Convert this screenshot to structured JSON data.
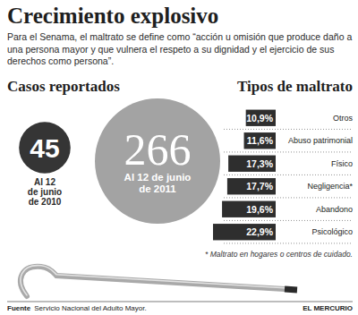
{
  "title": "Crecimiento explosivo",
  "subtitle": "Para el Senama, el maltrato se define como “acción u omisión que produce daño a una persona mayor y que vulnera el respeto a su dignidad y el ejercicio de sus derechos como persona”.",
  "source_label": "Fuente",
  "source": "Servicio Nacional del Adulto Mayor.",
  "publisher": "EL MERCURIO",
  "chart_data": [
    {
      "type": "bubble",
      "title": "Casos reportados",
      "categories": [
        "Al 12 de junio de 2010",
        "Al 12 de junio de 2011"
      ],
      "values": [
        45,
        266
      ],
      "colors": [
        "#353535",
        "#a3a3a3"
      ],
      "data_labels": true
    },
    {
      "type": "bar",
      "title": "Tipos de maltrato",
      "orientation": "horizontal",
      "categories": [
        "Otros",
        "Abuso patrimonial",
        "Físico",
        "Negligencia*",
        "Abandono",
        "Psicológico"
      ],
      "values": [
        10.9,
        11.6,
        17.3,
        17.7,
        19.6,
        22.9
      ],
      "value_labels": [
        "10,9%",
        "11,6%",
        "17,3%",
        "17,7%",
        "19,6%",
        "22,9%"
      ],
      "color": "#2e2e2e",
      "data_labels": true,
      "tick_labels": false,
      "annotations": [
        "* Maltrato en hogares o centros de cuidado."
      ]
    }
  ]
}
